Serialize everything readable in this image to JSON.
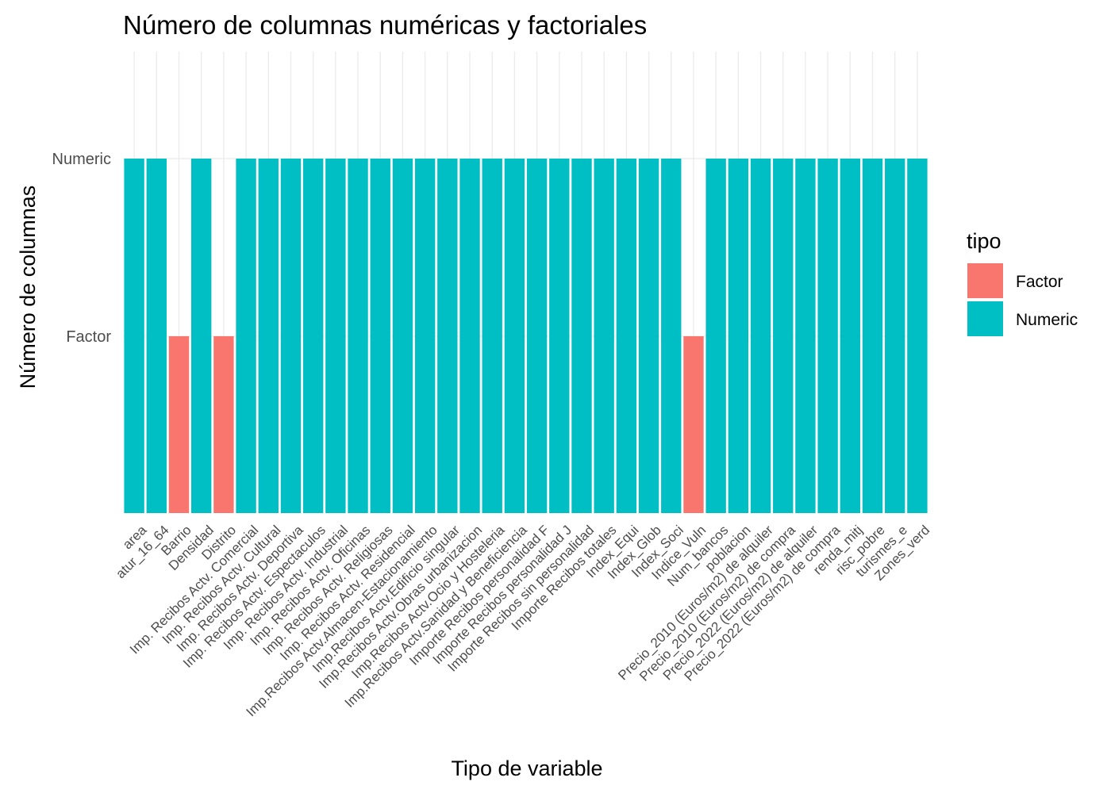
{
  "chart_data": {
    "type": "bar",
    "title": "Número de columnas numéricas y factoriales",
    "xlabel": "Tipo de variable",
    "ylabel": "Número de columnas",
    "y_categories": [
      "Factor",
      "Numeric"
    ],
    "categories": [
      "area",
      "atur_16_64",
      "Barrio",
      "Densidad",
      "Distrito",
      "Imp. Recibos Actv. Comercial",
      "Imp. Recibos Actv. Cultural",
      "Imp. Recibos Actv. Deportiva",
      "Imp. Recibos Actv. Espectaculos",
      "Imp. Recibos Actv. Industrial",
      "Imp. Recibos Actv. Oficinas",
      "Imp. Recibos Actv. Religiosas",
      "Imp. Recibos Actv. Residencial",
      "Imp.Recibos Actv.Almacen-Estacionamiento",
      "Imp.Recibos Actv.Edificio singular",
      "Imp.Recibos Actv.Obras urbanizacion",
      "Imp.Recibos Actv.Ocio y Hosteleria",
      "Imp.Recibos Actv.Sanidad y Beneficiencia",
      "Importe Recibos personalidad F",
      "Importe Recibos personalidad J",
      "Importe Recibos sin personalidad",
      "Importe Recibos totales",
      "Index_Equi",
      "Index_Glob",
      "Index_Soci",
      "Indice_Vuln",
      "Num_bancos",
      "poblacion",
      "Precio_2010 (Euros/m2) de alquiler",
      "Precio_2010 (Euros/m2) de compra",
      "Precio_2022 (Euros/m2) de alquiler",
      "Precio_2022 (Euros/m2) de compra",
      "renda_mitj",
      "risc_pobre",
      "turismes_e",
      "Zones_verd"
    ],
    "values": [
      "Numeric",
      "Numeric",
      "Factor",
      "Numeric",
      "Factor",
      "Numeric",
      "Numeric",
      "Numeric",
      "Numeric",
      "Numeric",
      "Numeric",
      "Numeric",
      "Numeric",
      "Numeric",
      "Numeric",
      "Numeric",
      "Numeric",
      "Numeric",
      "Numeric",
      "Numeric",
      "Numeric",
      "Numeric",
      "Numeric",
      "Numeric",
      "Numeric",
      "Factor",
      "Numeric",
      "Numeric",
      "Numeric",
      "Numeric",
      "Numeric",
      "Numeric",
      "Numeric",
      "Numeric",
      "Numeric",
      "Numeric"
    ],
    "legend": {
      "title": "tipo",
      "position": "right",
      "entries": [
        {
          "label": "Factor",
          "color": "#F8766D"
        },
        {
          "label": "Numeric",
          "color": "#00BFC4"
        }
      ]
    },
    "grid": true
  }
}
